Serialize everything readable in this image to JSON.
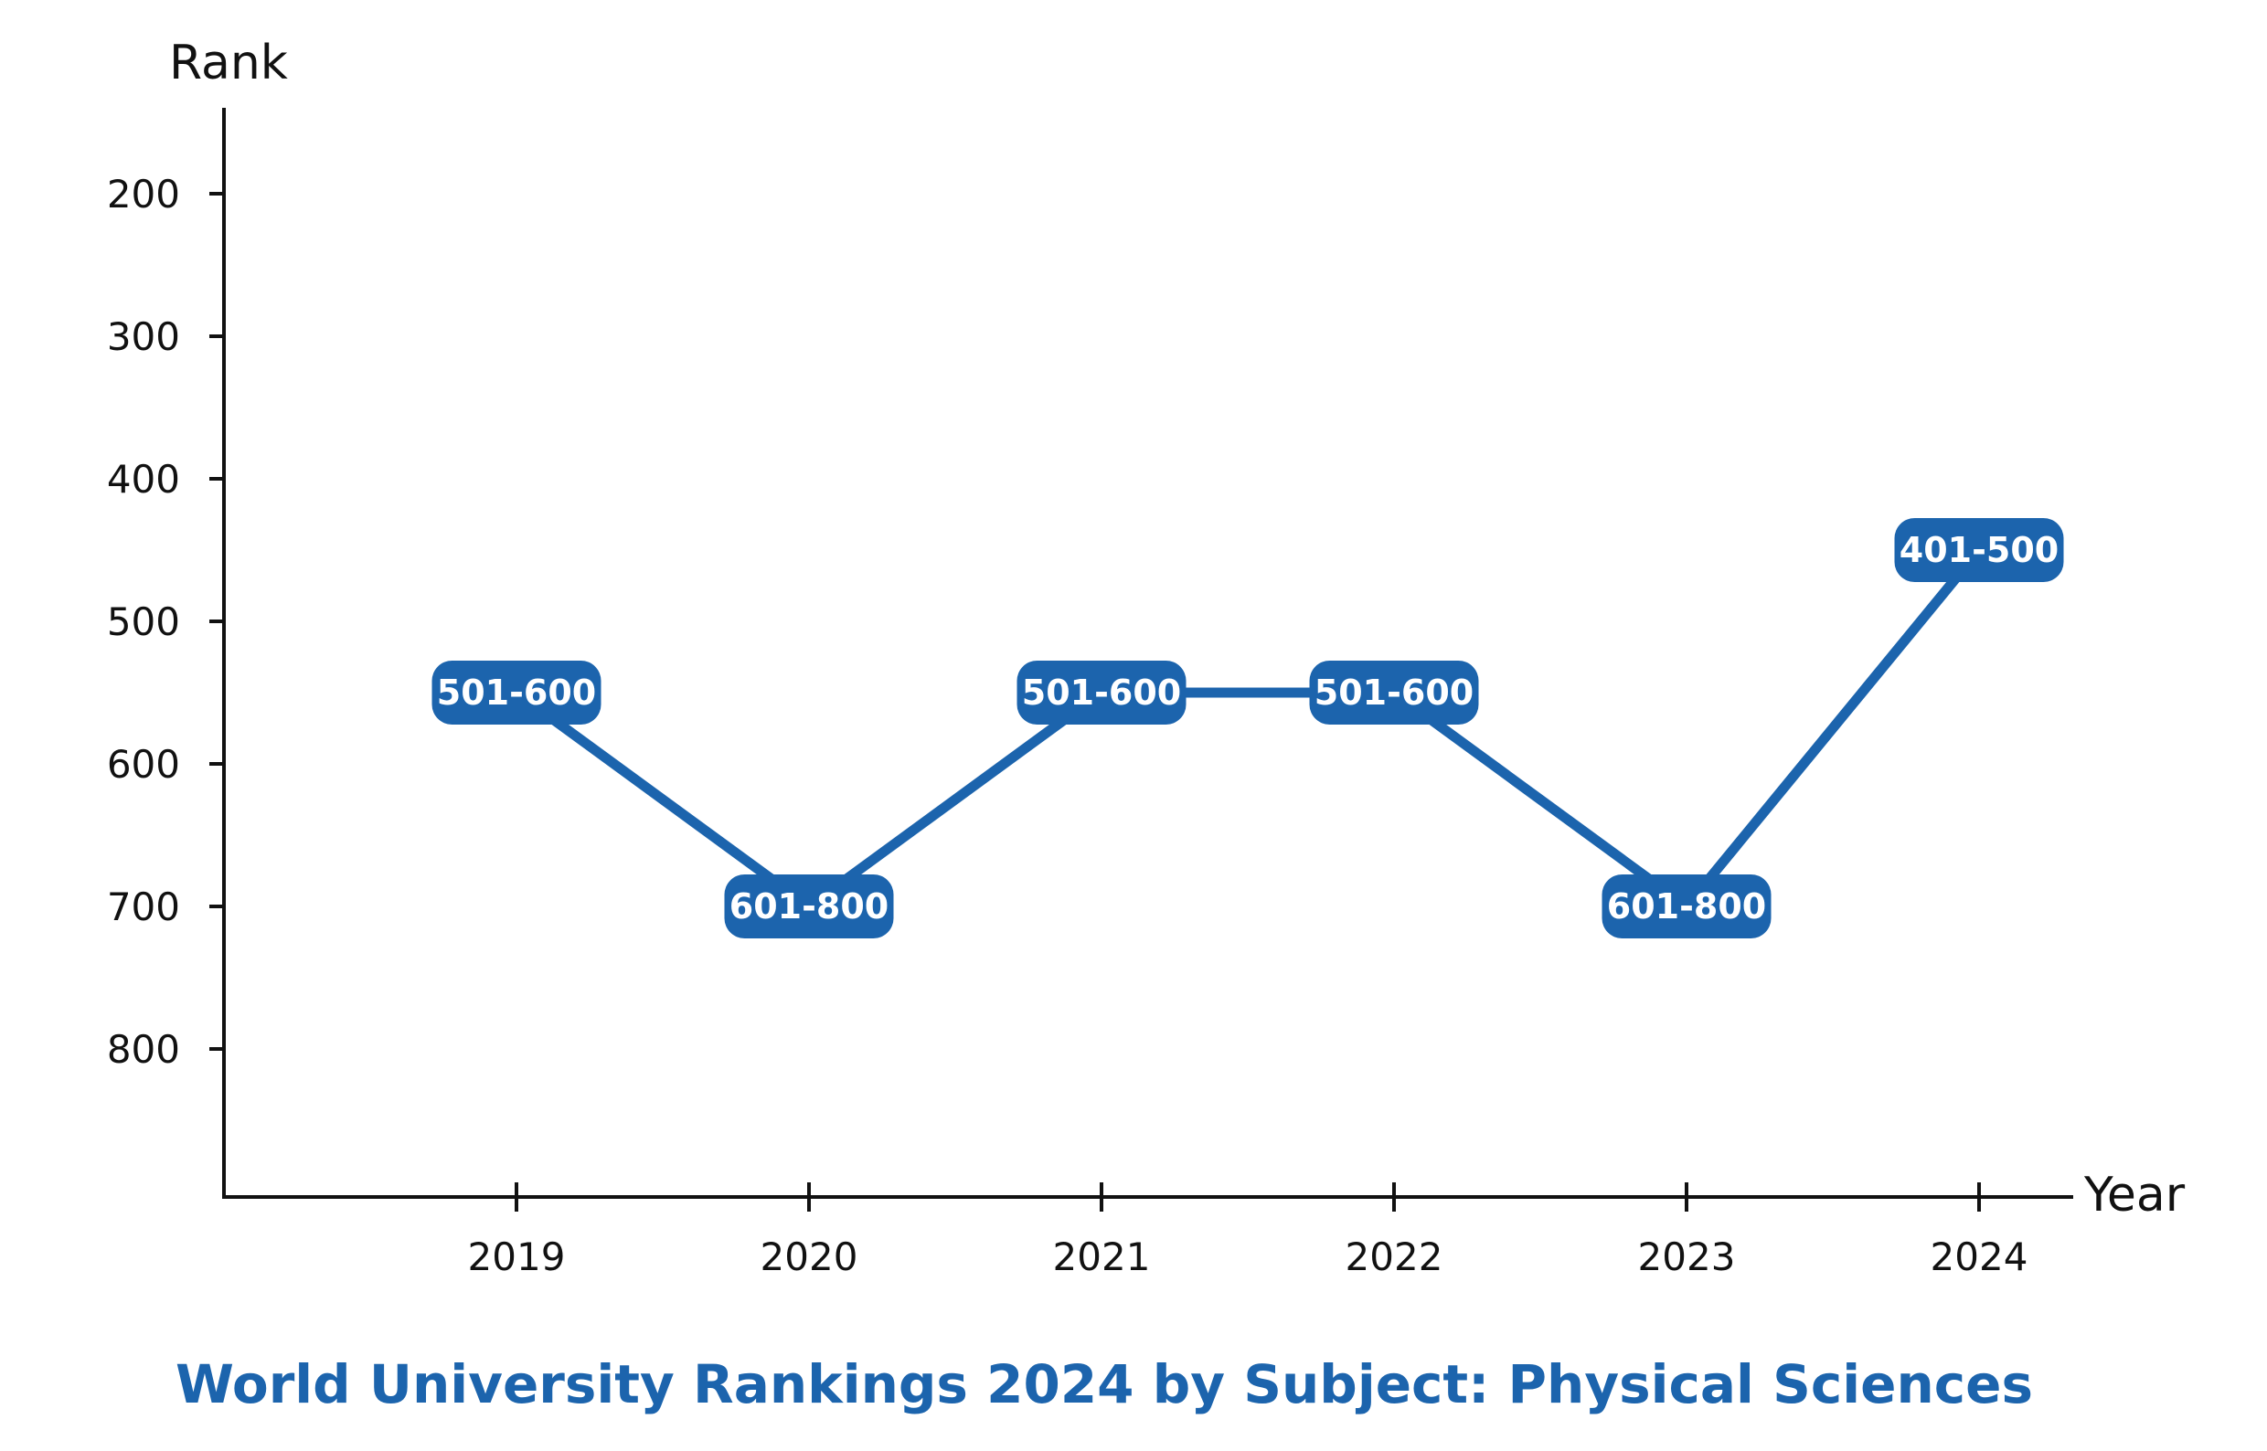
{
  "chart_data": {
    "type": "line",
    "title": "World University Rankings 2024 by Subject: Physical Sciences",
    "xlabel": "Year",
    "ylabel": "Rank",
    "x": [
      "2019",
      "2020",
      "2021",
      "2022",
      "2023",
      "2024"
    ],
    "series": [
      {
        "values": [
          550,
          700,
          550,
          550,
          700,
          450
        ],
        "labels": [
          "501-600",
          "601-800",
          "501-600",
          "501-600",
          "601-800",
          "401-500"
        ]
      }
    ],
    "yticks": [
      200,
      300,
      400,
      500,
      600,
      700,
      800
    ],
    "ylim": [
      140,
      900
    ],
    "y_inverted": true,
    "grid": false,
    "colors": {
      "line": "#1c64ad",
      "axis": "#111111",
      "title": "#1c64ad"
    }
  }
}
